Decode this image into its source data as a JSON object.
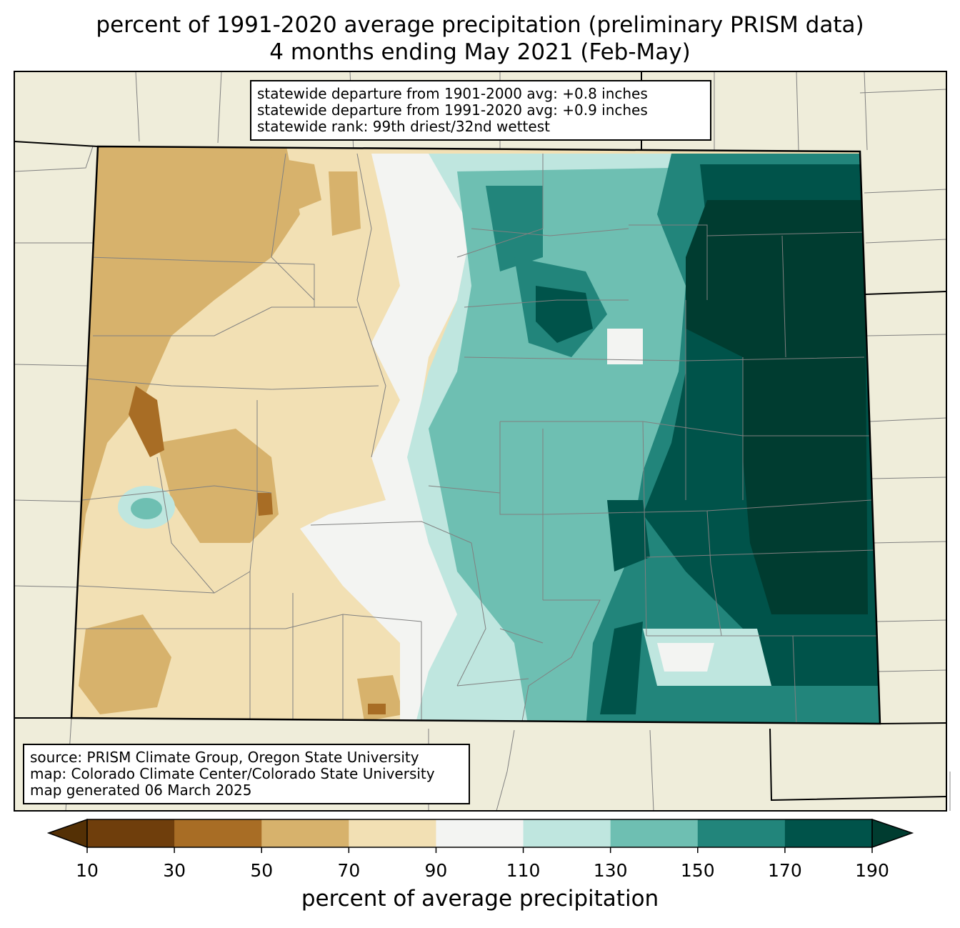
{
  "title": {
    "line1": "percent of 1991-2020 average precipitation (preliminary PRISM data)",
    "line2": "4 months ending May 2021 (Feb-May)"
  },
  "stats_box": {
    "line1": "statewide departure from 1901-2000 avg: +0.8 inches",
    "line2": "statewide departure from 1991-2020 avg: +0.9 inches",
    "line3": "statewide rank: 99th driest/32nd wettest"
  },
  "source_box": {
    "line1": "source: PRISM Climate Group, Oregon State University",
    "line2": "map: Colorado Climate Center/Colorado State University",
    "line3": "map generated 06 March 2025"
  },
  "colorbar": {
    "label": "percent of average precipitation",
    "ticks": [
      "10",
      "30",
      "50",
      "70",
      "90",
      "110",
      "130",
      "150",
      "170",
      "190"
    ],
    "under_color": "#543005",
    "over_color": "#003c30",
    "bins": [
      {
        "range": "10-30",
        "color": "#6f3e0c"
      },
      {
        "range": "30-50",
        "color": "#a86d25"
      },
      {
        "range": "50-70",
        "color": "#d7b26c"
      },
      {
        "range": "70-90",
        "color": "#f2e0b4"
      },
      {
        "range": "90-110",
        "color": "#f3f4f2"
      },
      {
        "range": "110-130",
        "color": "#bfe6df"
      },
      {
        "range": "130-150",
        "color": "#6ebfb2"
      },
      {
        "range": "150-170",
        "color": "#22857b"
      },
      {
        "range": "170-190",
        "color": "#00534a"
      }
    ]
  },
  "map_colors": {
    "background": "#efedda",
    "county_lines": "#808080",
    "state_border": "#000000"
  }
}
